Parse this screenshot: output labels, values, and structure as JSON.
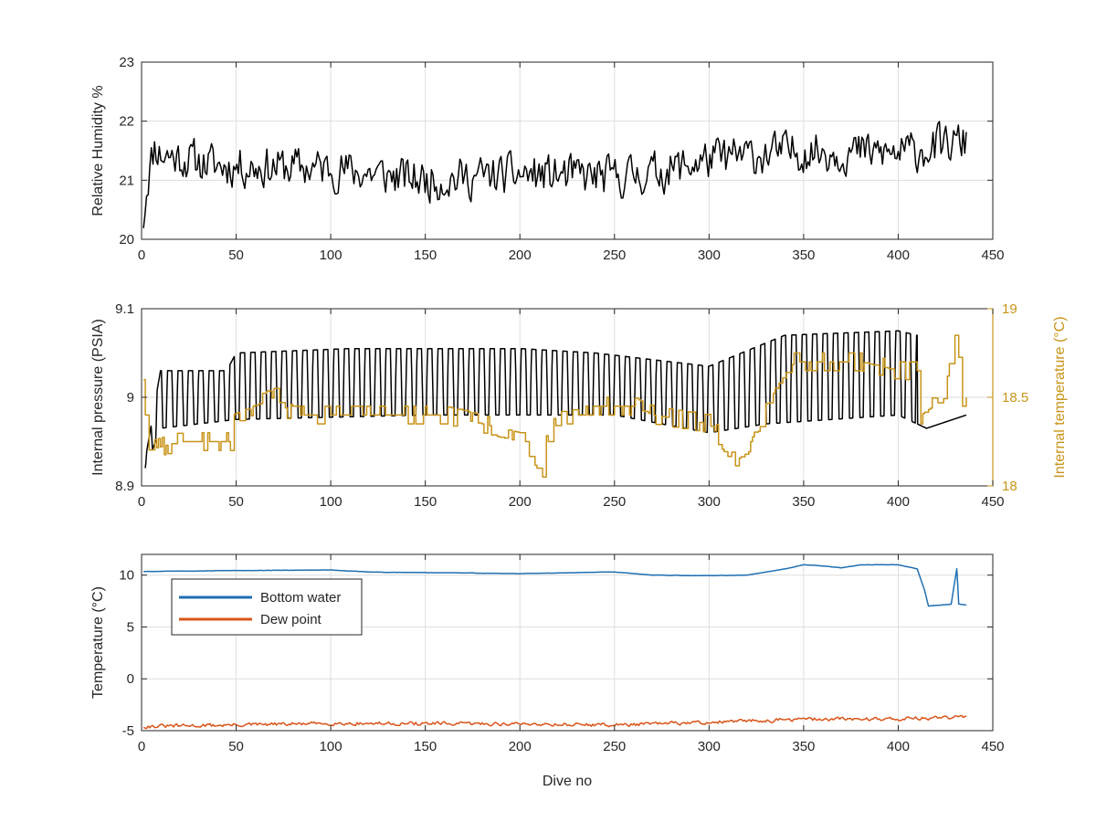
{
  "figure": {
    "background": "#ffffff"
  },
  "chart_data": [
    {
      "type": "line",
      "xlabel": "",
      "ylabel": "Relative Humidity %",
      "xlim": [
        0,
        450
      ],
      "ylim": [
        20,
        23
      ],
      "xticks": [
        "0",
        "50",
        "100",
        "150",
        "200",
        "250",
        "300",
        "350",
        "400",
        "450"
      ],
      "yticks": [
        "20",
        "21",
        "22",
        "23"
      ],
      "grid": true,
      "series": [
        {
          "name": "",
          "color": "#000000",
          "kind": "noisy",
          "x_range": [
            1,
            436
          ],
          "n": 520,
          "seed": 11,
          "amp": 0.3,
          "knots": [
            [
              1,
              20.35
            ],
            [
              3,
              21.0
            ],
            [
              7,
              21.6
            ],
            [
              10,
              21.45
            ],
            [
              40,
              21.25
            ],
            [
              100,
              21.2
            ],
            [
              150,
              21.0
            ],
            [
              200,
              21.1
            ],
            [
              250,
              21.05
            ],
            [
              275,
              21.15
            ],
            [
              300,
              21.35
            ],
            [
              350,
              21.5
            ],
            [
              400,
              21.45
            ],
            [
              436,
              21.65
            ]
          ]
        }
      ]
    },
    {
      "type": "line",
      "xlabel": "",
      "ylabel": "Internal pressure (PSIA)",
      "ylabel_right": "Internal temperature (°C)",
      "xlim": [
        0,
        450
      ],
      "ylim": [
        8.9,
        9.1
      ],
      "ylim_right": [
        18,
        19
      ],
      "xticks": [
        "0",
        "50",
        "100",
        "150",
        "200",
        "250",
        "300",
        "350",
        "400",
        "450"
      ],
      "yticks": [
        "8.9",
        "9",
        "9.1"
      ],
      "yticks_right": [
        "18",
        "18.5",
        "19"
      ],
      "grid": true,
      "series": [
        {
          "name": "",
          "color": "#000000",
          "axis": "left",
          "kind": "oscillate",
          "x_range": [
            2,
            436
          ],
          "period": 5.5,
          "low": [
            [
              2,
              8.92
            ],
            [
              10,
              8.965
            ],
            [
              50,
              8.975
            ],
            [
              150,
              8.98
            ],
            [
              250,
              8.98
            ],
            [
              300,
              8.96
            ],
            [
              330,
              8.97
            ],
            [
              400,
              8.98
            ],
            [
              410,
              8.97
            ],
            [
              415,
              8.965
            ],
            [
              436,
              8.98
            ]
          ],
          "high": [
            [
              2,
              8.93
            ],
            [
              10,
              9.03
            ],
            [
              45,
              9.03
            ],
            [
              50,
              9.05
            ],
            [
              110,
              9.055
            ],
            [
              200,
              9.055
            ],
            [
              240,
              9.05
            ],
            [
              300,
              9.035
            ],
            [
              340,
              9.07
            ],
            [
              400,
              9.075
            ],
            [
              410,
              9.07
            ]
          ],
          "osc_end": 410
        },
        {
          "name": "",
          "color": "#c89418",
          "axis": "right",
          "kind": "steps",
          "x_range": [
            1,
            436
          ],
          "seed": 23,
          "amp": 0.05,
          "knots": [
            [
              1,
              18.6
            ],
            [
              3,
              18.2
            ],
            [
              20,
              18.25
            ],
            [
              47,
              18.25
            ],
            [
              48,
              18.4
            ],
            [
              70,
              18.5
            ],
            [
              80,
              18.4
            ],
            [
              130,
              18.4
            ],
            [
              160,
              18.4
            ],
            [
              200,
              18.3
            ],
            [
              212,
              18.1
            ],
            [
              215,
              18.3
            ],
            [
              230,
              18.45
            ],
            [
              260,
              18.45
            ],
            [
              270,
              18.4
            ],
            [
              300,
              18.35
            ],
            [
              315,
              18.15
            ],
            [
              322,
              18.2
            ],
            [
              335,
              18.55
            ],
            [
              345,
              18.7
            ],
            [
              380,
              18.7
            ],
            [
              400,
              18.65
            ],
            [
              410,
              18.65
            ],
            [
              412,
              18.4
            ],
            [
              425,
              18.5
            ],
            [
              430,
              18.85
            ],
            [
              434,
              18.5
            ]
          ]
        }
      ]
    },
    {
      "type": "line",
      "xlabel": "Dive no",
      "ylabel": "Temperature (°C)",
      "xlim": [
        0,
        450
      ],
      "ylim": [
        -5,
        12
      ],
      "xticks": [
        "0",
        "50",
        "100",
        "150",
        "200",
        "250",
        "300",
        "350",
        "400",
        "450"
      ],
      "yticks": [
        "-5",
        "0",
        "5",
        "10"
      ],
      "grid": true,
      "legend": {
        "placement": "top-left"
      },
      "series": [
        {
          "name": "Bottom water",
          "color": "#1f6fb2",
          "kind": "smooth",
          "x_range": [
            1,
            436
          ],
          "seed": 5,
          "amp": 0.05,
          "knots": [
            [
              1,
              10.35
            ],
            [
              50,
              10.45
            ],
            [
              100,
              10.5
            ],
            [
              120,
              10.3
            ],
            [
              200,
              10.15
            ],
            [
              250,
              10.3
            ],
            [
              270,
              10.0
            ],
            [
              300,
              9.95
            ],
            [
              320,
              10.0
            ],
            [
              340,
              10.6
            ],
            [
              350,
              11.0
            ],
            [
              360,
              10.9
            ],
            [
              370,
              10.7
            ],
            [
              380,
              11.0
            ],
            [
              400,
              11.0
            ],
            [
              410,
              10.6
            ],
            [
              414,
              8.5
            ],
            [
              416,
              7.0
            ],
            [
              428,
              7.2
            ],
            [
              430,
              9.5
            ],
            [
              431,
              10.6
            ],
            [
              432,
              7.2
            ],
            [
              436,
              7.1
            ]
          ]
        },
        {
          "name": "Dew point",
          "color": "#d9541a",
          "kind": "noisy",
          "x_range": [
            1,
            436
          ],
          "n": 520,
          "seed": 31,
          "amp": 0.15,
          "knots": [
            [
              1,
              -4.6
            ],
            [
              100,
              -4.3
            ],
            [
              200,
              -4.35
            ],
            [
              250,
              -4.45
            ],
            [
              300,
              -4.2
            ],
            [
              350,
              -3.9
            ],
            [
              400,
              -3.85
            ],
            [
              436,
              -3.7
            ]
          ]
        }
      ]
    }
  ]
}
